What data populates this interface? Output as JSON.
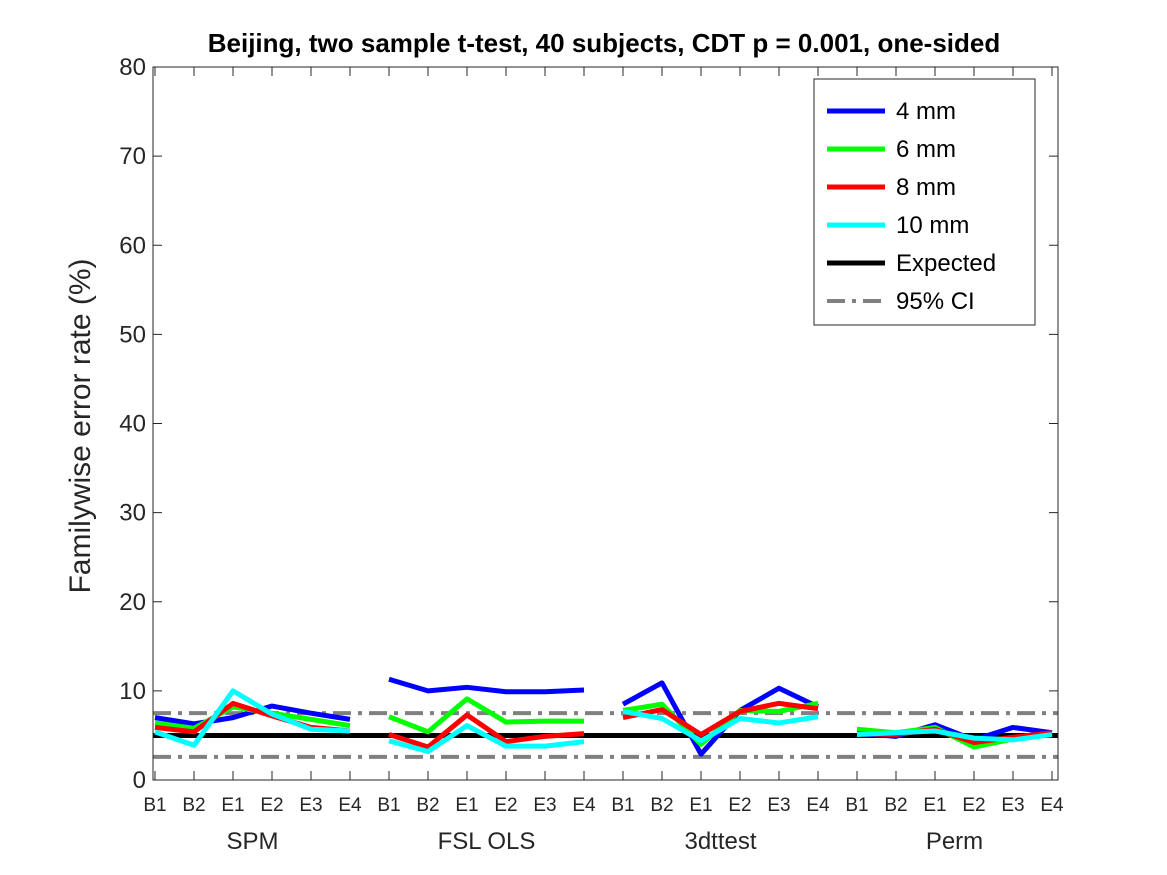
{
  "chart_data": {
    "type": "line",
    "title": "Beijing, two sample t-test, 40 subjects, CDT p = 0.001, one-sided",
    "ylabel": "Familywise error rate (%)",
    "xlabel": "",
    "ylim": [
      0,
      80
    ],
    "yticks": [
      0,
      10,
      20,
      30,
      40,
      50,
      60,
      70,
      80
    ],
    "xtick_labels": [
      "B1",
      "B2",
      "E1",
      "E2",
      "E3",
      "E4",
      "B1",
      "B2",
      "E1",
      "E2",
      "E3",
      "E4",
      "B1",
      "B2",
      "E1",
      "E2",
      "E3",
      "E4",
      "B1",
      "B2",
      "E1",
      "E2",
      "E3",
      "E4"
    ],
    "groups": [
      "SPM",
      "FSL OLS",
      "3dttest",
      "Perm"
    ],
    "grid": false,
    "legend_position": "top-right",
    "series": [
      {
        "name": "4 mm",
        "color": "#0000ff",
        "segments": [
          [
            7.0,
            6.3,
            7.0,
            8.3,
            7.5,
            6.8
          ],
          [
            11.3,
            10.0,
            10.4,
            9.9,
            9.9,
            10.1
          ],
          [
            8.5,
            10.9,
            2.9,
            7.8,
            10.3,
            8.2
          ],
          [
            5.2,
            4.9,
            6.2,
            4.5,
            5.9,
            5.3
          ]
        ]
      },
      {
        "name": "6 mm",
        "color": "#00ff00",
        "segments": [
          [
            6.4,
            5.8,
            8.2,
            7.5,
            6.8,
            6.1
          ],
          [
            7.1,
            5.4,
            9.1,
            6.5,
            6.6,
            6.6
          ],
          [
            7.8,
            8.5,
            4.0,
            7.8,
            7.7,
            8.6
          ],
          [
            5.7,
            5.3,
            5.9,
            3.7,
            4.6,
            5.3
          ]
        ]
      },
      {
        "name": "8 mm",
        "color": "#ff0000",
        "segments": [
          [
            5.9,
            5.4,
            8.6,
            7.2,
            5.9,
            5.5
          ],
          [
            5.1,
            3.7,
            7.3,
            4.3,
            4.9,
            5.2
          ],
          [
            7.0,
            7.9,
            5.1,
            7.7,
            8.6,
            8.0
          ],
          [
            5.2,
            5.1,
            5.7,
            4.2,
            4.8,
            5.3
          ]
        ]
      },
      {
        "name": "10 mm",
        "color": "#00ffff",
        "segments": [
          [
            5.4,
            3.9,
            10.0,
            7.4,
            5.7,
            5.5
          ],
          [
            4.4,
            3.2,
            6.1,
            3.8,
            3.8,
            4.3
          ],
          [
            7.7,
            6.9,
            4.4,
            6.9,
            6.4,
            7.1
          ],
          [
            5.1,
            5.3,
            5.5,
            4.7,
            4.5,
            5.1
          ]
        ]
      },
      {
        "name": "Expected",
        "color": "#000000",
        "constant": 5
      },
      {
        "name": "95% CI",
        "color": "#808080",
        "constants": [
          2.6,
          7.5
        ]
      }
    ]
  }
}
